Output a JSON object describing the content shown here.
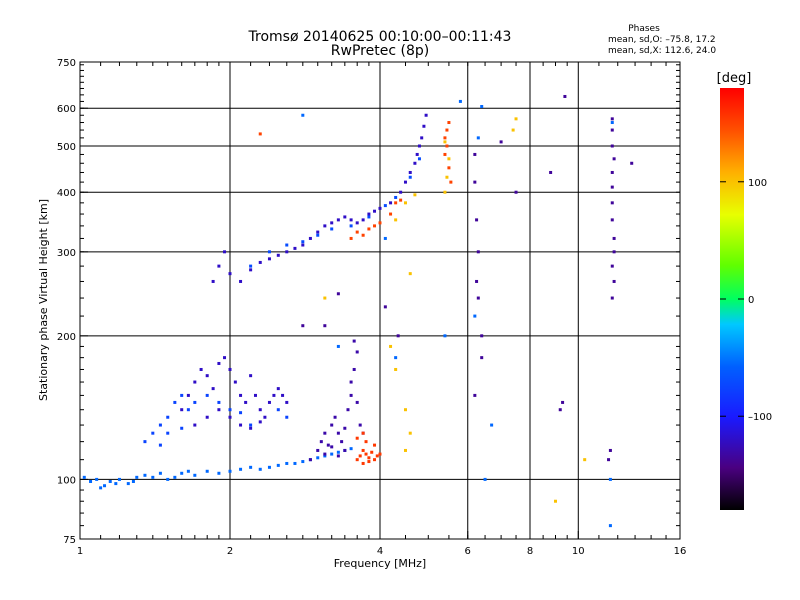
{
  "title": {
    "line1": "Tromsø 20140625 00:10:00–00:11:43",
    "line2": "RwPretec (8p)"
  },
  "phases": {
    "heading": "Phases",
    "line1": "mean, sd,O: –75.8, 17.2",
    "line2": "mean, sd,X: 112.6, 24.0"
  },
  "chart_data": {
    "type": "scatter",
    "title": "Tromsø 20140625 00:10:00–00:11:43",
    "subtitle": "RwPretec (8p)",
    "xlabel": "Frequency [MHz]",
    "ylabel": "Stationary phase Virtual Height [km]",
    "x_scale": "log",
    "y_scale": "log",
    "xlim": [
      1,
      16
    ],
    "ylim": [
      75,
      750
    ],
    "x_ticks": [
      "1",
      "2",
      "4",
      "6",
      "8",
      "10",
      "16"
    ],
    "y_ticks": [
      "75",
      "100",
      "200",
      "300",
      "400",
      "500",
      "600",
      "750"
    ],
    "grid": true,
    "colorbar": {
      "label": "[deg]",
      "range": [
        -180,
        180
      ],
      "ticks": [
        "100",
        "0",
        "–100"
      ],
      "colormap": "rainbow"
    },
    "series": [
      {
        "color_phase": -55,
        "points": [
          [
            1.02,
            101
          ],
          [
            1.05,
            99
          ],
          [
            1.08,
            100
          ],
          [
            1.12,
            97
          ],
          [
            1.15,
            99
          ],
          [
            1.2,
            100
          ],
          [
            1.25,
            98
          ],
          [
            1.3,
            101
          ],
          [
            1.35,
            102
          ],
          [
            1.4,
            101
          ],
          [
            1.45,
            103
          ],
          [
            1.5,
            100
          ],
          [
            1.55,
            101
          ],
          [
            1.6,
            103
          ],
          [
            1.7,
            102
          ],
          [
            1.8,
            104
          ],
          [
            1.9,
            103
          ],
          [
            2.0,
            104
          ],
          [
            2.1,
            105
          ],
          [
            2.2,
            106
          ],
          [
            2.3,
            105
          ],
          [
            2.4,
            106
          ],
          [
            2.5,
            107
          ],
          [
            2.6,
            108
          ],
          [
            2.7,
            108
          ],
          [
            2.8,
            109
          ],
          [
            2.9,
            110
          ],
          [
            3.0,
            111
          ],
          [
            3.1,
            112
          ],
          [
            3.2,
            113
          ],
          [
            3.3,
            114
          ],
          [
            3.4,
            115
          ],
          [
            3.5,
            116
          ],
          [
            1.1,
            96
          ],
          [
            1.18,
            98
          ],
          [
            1.28,
            99
          ],
          [
            1.65,
            104
          ]
        ]
      },
      {
        "color_phase": -120,
        "points": [
          [
            1.6,
            140
          ],
          [
            1.65,
            150
          ],
          [
            1.7,
            160
          ],
          [
            1.75,
            170
          ],
          [
            1.8,
            165
          ],
          [
            1.85,
            155
          ],
          [
            1.9,
            175
          ],
          [
            1.95,
            180
          ],
          [
            2.0,
            170
          ],
          [
            2.05,
            160
          ],
          [
            2.1,
            150
          ],
          [
            2.15,
            145
          ],
          [
            2.2,
            165
          ],
          [
            2.25,
            150
          ],
          [
            2.3,
            140
          ],
          [
            2.35,
            135
          ],
          [
            2.4,
            145
          ],
          [
            2.45,
            150
          ],
          [
            2.5,
            155
          ],
          [
            2.55,
            150
          ],
          [
            2.6,
            145
          ],
          [
            1.7,
            130
          ],
          [
            1.8,
            135
          ],
          [
            1.9,
            140
          ],
          [
            2.0,
            135
          ],
          [
            2.1,
            130
          ],
          [
            2.2,
            128
          ],
          [
            2.3,
            132
          ]
        ]
      },
      {
        "color_phase": -75,
        "points": [
          [
            1.35,
            120
          ],
          [
            1.4,
            125
          ],
          [
            1.45,
            130
          ],
          [
            1.5,
            135
          ],
          [
            1.55,
            145
          ],
          [
            1.6,
            150
          ],
          [
            1.65,
            140
          ],
          [
            1.5,
            125
          ],
          [
            1.45,
            118
          ],
          [
            1.6,
            128
          ],
          [
            1.7,
            145
          ],
          [
            1.8,
            150
          ],
          [
            1.9,
            145
          ],
          [
            2.0,
            140
          ],
          [
            2.1,
            138
          ],
          [
            2.2,
            130
          ],
          [
            2.5,
            140
          ],
          [
            2.6,
            135
          ]
        ]
      },
      {
        "color_phase": -130,
        "points": [
          [
            2.9,
            110
          ],
          [
            3.0,
            115
          ],
          [
            3.05,
            120
          ],
          [
            3.1,
            125
          ],
          [
            3.15,
            118
          ],
          [
            3.2,
            130
          ],
          [
            3.25,
            135
          ],
          [
            3.3,
            125
          ],
          [
            3.35,
            120
          ],
          [
            3.4,
            128
          ],
          [
            3.45,
            140
          ],
          [
            3.5,
            150
          ],
          [
            3.55,
            170
          ],
          [
            3.6,
            185
          ],
          [
            3.55,
            195
          ],
          [
            3.5,
            160
          ],
          [
            3.6,
            145
          ],
          [
            3.65,
            130
          ],
          [
            3.7,
            125
          ],
          [
            3.4,
            115
          ],
          [
            3.3,
            112
          ],
          [
            3.2,
            117
          ],
          [
            3.1,
            113
          ]
        ]
      },
      {
        "color_phase": 155,
        "points": [
          [
            3.6,
            110
          ],
          [
            3.65,
            112
          ],
          [
            3.7,
            115
          ],
          [
            3.75,
            113
          ],
          [
            3.8,
            111
          ],
          [
            3.85,
            114
          ],
          [
            3.9,
            118
          ],
          [
            3.95,
            112
          ],
          [
            3.7,
            108
          ],
          [
            3.8,
            109
          ],
          [
            3.9,
            110
          ],
          [
            4.0,
            113
          ],
          [
            3.6,
            122
          ],
          [
            3.7,
            125
          ],
          [
            3.75,
            120
          ]
        ]
      },
      {
        "color_phase": -120,
        "points": [
          [
            1.85,
            260
          ],
          [
            1.9,
            280
          ],
          [
            1.95,
            300
          ],
          [
            2.0,
            270
          ],
          [
            2.1,
            260
          ],
          [
            2.2,
            275
          ],
          [
            2.3,
            285
          ],
          [
            2.4,
            290
          ],
          [
            2.5,
            295
          ],
          [
            2.6,
            300
          ],
          [
            2.7,
            305
          ],
          [
            2.8,
            310
          ],
          [
            2.9,
            320
          ],
          [
            3.0,
            330
          ],
          [
            3.1,
            340
          ],
          [
            3.2,
            345
          ],
          [
            3.3,
            350
          ],
          [
            3.4,
            355
          ],
          [
            3.5,
            350
          ],
          [
            3.6,
            345
          ],
          [
            3.7,
            350
          ],
          [
            3.8,
            360
          ],
          [
            3.9,
            365
          ],
          [
            4.0,
            370
          ],
          [
            4.2,
            380
          ],
          [
            4.4,
            400
          ],
          [
            4.5,
            420
          ],
          [
            4.6,
            440
          ],
          [
            4.7,
            460
          ],
          [
            4.75,
            480
          ],
          [
            4.8,
            500
          ],
          [
            4.85,
            520
          ],
          [
            4.9,
            550
          ],
          [
            4.95,
            580
          ]
        ]
      },
      {
        "color_phase": -70,
        "points": [
          [
            2.2,
            280
          ],
          [
            2.4,
            300
          ],
          [
            2.6,
            310
          ],
          [
            2.8,
            315
          ],
          [
            3.0,
            325
          ],
          [
            3.2,
            335
          ],
          [
            3.5,
            340
          ],
          [
            3.8,
            355
          ],
          [
            4.1,
            375
          ],
          [
            4.3,
            390
          ],
          [
            4.6,
            430
          ],
          [
            4.8,
            470
          ]
        ]
      },
      {
        "color_phase": 150,
        "points": [
          [
            3.5,
            320
          ],
          [
            3.6,
            330
          ],
          [
            3.7,
            325
          ],
          [
            3.8,
            335
          ],
          [
            3.9,
            340
          ],
          [
            4.0,
            345
          ],
          [
            4.2,
            360
          ],
          [
            4.3,
            380
          ],
          [
            4.4,
            385
          ],
          [
            5.4,
            520
          ],
          [
            5.45,
            540
          ],
          [
            5.5,
            560
          ],
          [
            5.45,
            500
          ],
          [
            5.4,
            480
          ],
          [
            5.5,
            450
          ],
          [
            5.55,
            420
          ],
          [
            2.3,
            530
          ]
        ]
      },
      {
        "color_phase": 100,
        "points": [
          [
            5.4,
            400
          ],
          [
            5.45,
            430
          ],
          [
            5.5,
            470
          ],
          [
            5.4,
            510
          ],
          [
            4.5,
            380
          ],
          [
            4.7,
            395
          ],
          [
            4.6,
            270
          ],
          [
            4.3,
            350
          ],
          [
            7.4,
            540
          ],
          [
            7.5,
            570
          ],
          [
            3.1,
            240
          ],
          [
            4.3,
            170
          ],
          [
            4.2,
            190
          ],
          [
            4.5,
            140
          ],
          [
            4.6,
            125
          ],
          [
            4.5,
            115
          ],
          [
            9.0,
            90
          ],
          [
            10.3,
            110
          ]
        ]
      },
      {
        "color_phase": -135,
        "points": [
          [
            6.2,
            480
          ],
          [
            6.2,
            420
          ],
          [
            6.25,
            350
          ],
          [
            6.3,
            300
          ],
          [
            6.25,
            260
          ],
          [
            6.3,
            240
          ],
          [
            6.4,
            200
          ],
          [
            6.4,
            180
          ],
          [
            6.2,
            150
          ],
          [
            7.0,
            510
          ],
          [
            7.5,
            400
          ],
          [
            8.8,
            440
          ],
          [
            9.4,
            635
          ],
          [
            11.7,
            570
          ],
          [
            11.7,
            540
          ],
          [
            11.7,
            500
          ],
          [
            11.8,
            470
          ],
          [
            11.7,
            440
          ],
          [
            11.7,
            410
          ],
          [
            11.7,
            380
          ],
          [
            11.7,
            350
          ],
          [
            11.8,
            320
          ],
          [
            11.8,
            300
          ],
          [
            11.7,
            280
          ],
          [
            11.8,
            260
          ],
          [
            11.7,
            240
          ],
          [
            12.8,
            460
          ],
          [
            9.2,
            140
          ],
          [
            9.3,
            145
          ],
          [
            11.5,
            110
          ],
          [
            11.6,
            115
          ],
          [
            3.1,
            210
          ],
          [
            2.8,
            210
          ],
          [
            3.3,
            245
          ],
          [
            4.1,
            230
          ],
          [
            4.35,
            200
          ]
        ]
      },
      {
        "color_phase": -55,
        "points": [
          [
            2.8,
            580
          ],
          [
            5.8,
            620
          ],
          [
            6.4,
            605
          ],
          [
            6.5,
            100
          ],
          [
            6.7,
            130
          ],
          [
            5.4,
            200
          ],
          [
            4.3,
            180
          ],
          [
            11.6,
            100
          ],
          [
            11.7,
            560
          ],
          [
            11.6,
            80
          ],
          [
            6.3,
            520
          ],
          [
            6.2,
            220
          ],
          [
            3.3,
            190
          ],
          [
            4.1,
            320
          ]
        ]
      }
    ]
  }
}
